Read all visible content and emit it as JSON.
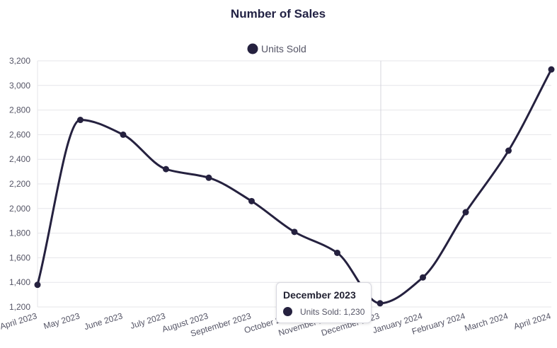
{
  "chart_data": {
    "type": "line",
    "title": "Number of Sales",
    "xlabel": "",
    "ylabel": "",
    "categories": [
      "April 2023",
      "May 2023",
      "June 2023",
      "July 2023",
      "August 2023",
      "September 2023",
      "October 2023",
      "November 2023",
      "December 2023",
      "January 2024",
      "February 2024",
      "March 2024",
      "April 2024"
    ],
    "series": [
      {
        "name": "Units Sold",
        "values": [
          1380,
          2720,
          2600,
          2320,
          2250,
          2060,
          1810,
          1640,
          1230,
          1440,
          1970,
          2470,
          3130
        ]
      }
    ],
    "ylim": [
      1200,
      3200
    ],
    "yticks": [
      "1,200",
      "1,400",
      "1,600",
      "1,800",
      "2,000",
      "2,200",
      "2,400",
      "2,600",
      "2,800",
      "3,000",
      "3,200"
    ],
    "grid": true,
    "legend_position": "top",
    "line_color": "#25213f",
    "tooltip": {
      "title": "December 2023",
      "label": "Units Sold: 1,230"
    }
  }
}
